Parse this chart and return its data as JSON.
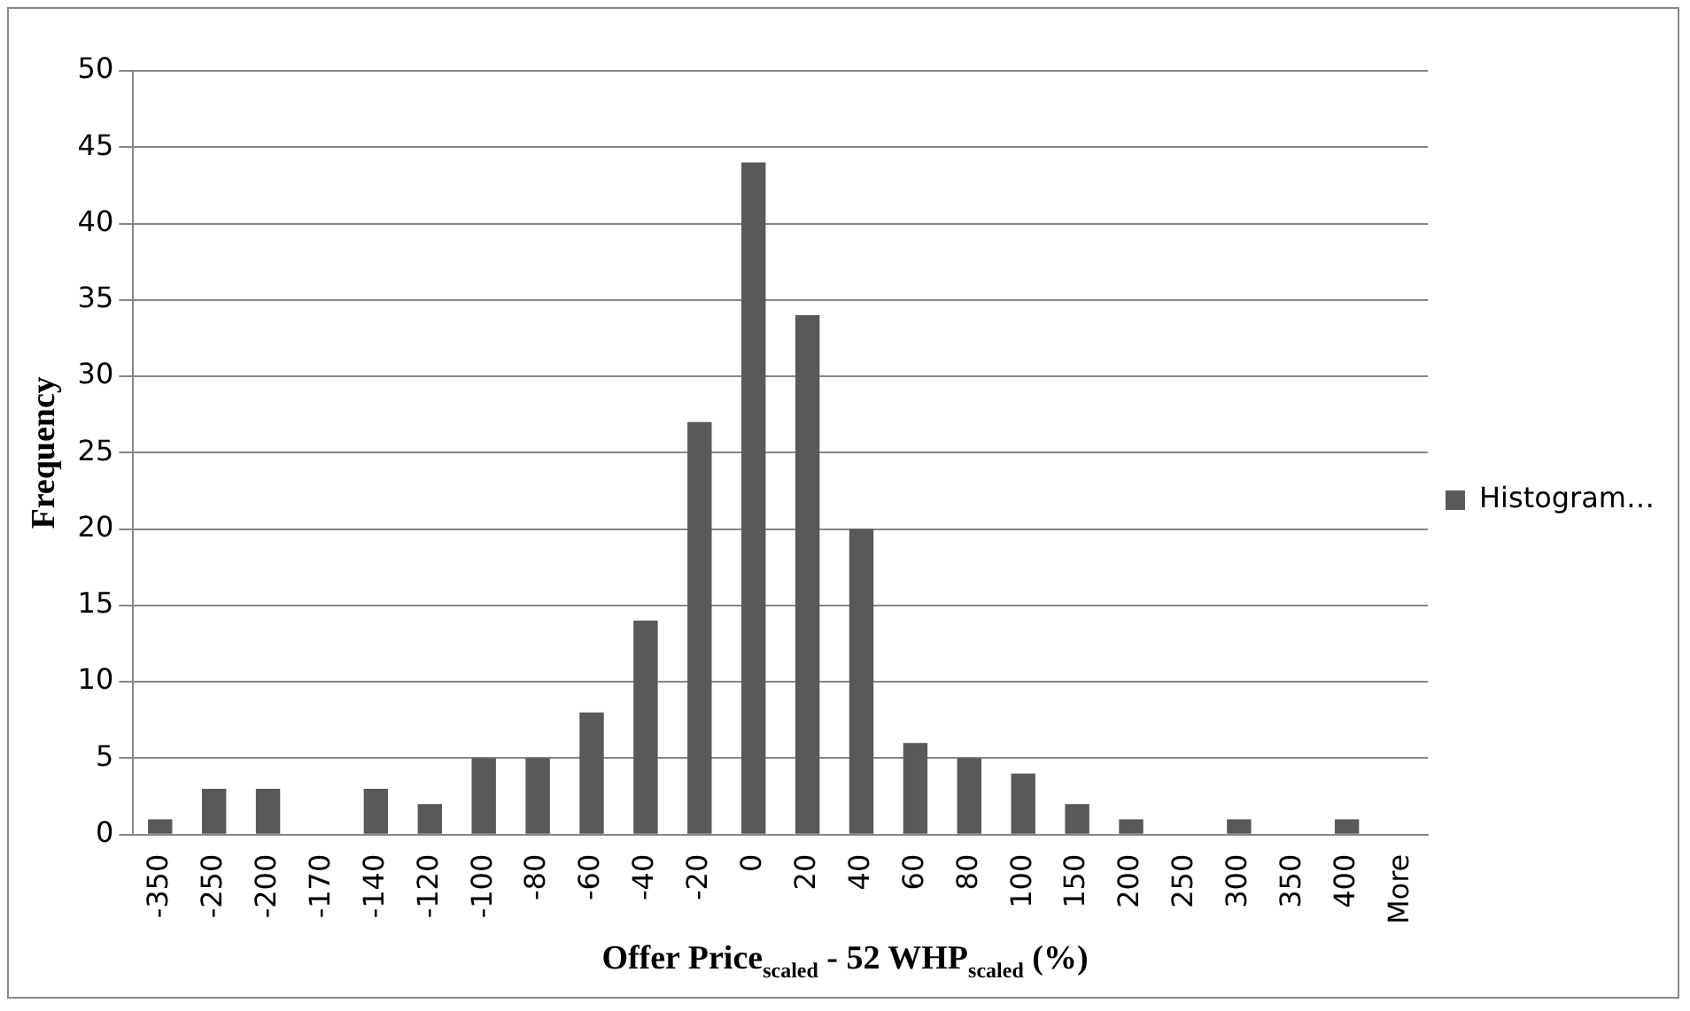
{
  "chart_data": {
    "type": "bar",
    "xlabel": "Offer Price$_{scaled}$ - 52 WHP$_{scaled}$ (%)",
    "ylabel": "Frequency",
    "categories": [
      "-350",
      "-250",
      "-200",
      "-170",
      "-140",
      "-120",
      "-100",
      "-80",
      "-60",
      "-40",
      "-20",
      "0",
      "20",
      "40",
      "60",
      "80",
      "100",
      "150",
      "200",
      "250",
      "300",
      "350",
      "400",
      "More"
    ],
    "series": [
      {
        "name": "Histogram…",
        "color": "#595959",
        "values": [
          1,
          3,
          3,
          0,
          3,
          2,
          5,
          5,
          8,
          14,
          27,
          44,
          34,
          20,
          6,
          5,
          4,
          2,
          1,
          0,
          1,
          0,
          1,
          0
        ]
      }
    ],
    "ylim": [
      0,
      50
    ],
    "yticks": [
      0,
      5,
      10,
      15,
      20,
      25,
      30,
      35,
      40,
      45,
      50
    ],
    "grid": "y",
    "legend": "right"
  }
}
